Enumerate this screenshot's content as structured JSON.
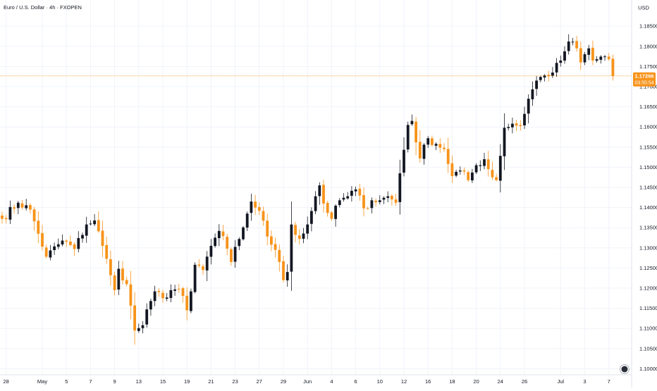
{
  "header": {
    "symbol_title": "Euro / U.S. Dollar · 4h · FXOPEN",
    "currency": "USD"
  },
  "price_tag": {
    "price": "1.17266",
    "countdown": "03:55:54",
    "value": 1.17266
  },
  "colors": {
    "up": "#131722",
    "down": "#f7931a",
    "grid": "#f0f3fa",
    "axis_text": "#131722",
    "price_line": "#f7931a"
  },
  "icons": {
    "bottom_right": "circle-dot-icon"
  },
  "chart_data": {
    "type": "candlestick",
    "title": "Euro / U.S. Dollar · 4h · FXOPEN",
    "ylabel": "USD",
    "ylim": [
      1.0985,
      1.1915
    ],
    "y_ticks": [
      1.185,
      1.18,
      1.175,
      1.17,
      1.165,
      1.16,
      1.155,
      1.15,
      1.145,
      1.14,
      1.135,
      1.13,
      1.125,
      1.12,
      1.115,
      1.11,
      1.105,
      1.1
    ],
    "y_tick_labels": [
      "1.18500",
      "1.18000",
      "1.17500",
      "1.17000",
      "1.16500",
      "1.16000",
      "1.15500",
      "1.15000",
      "1.14500",
      "1.14000",
      "1.13500",
      "1.13000",
      "1.12500",
      "1.12000",
      "1.11500",
      "1.11000",
      "1.10500",
      "1.10000"
    ],
    "x_labels": [
      "28",
      "May",
      "5",
      "7",
      "9",
      "13",
      "15",
      "19",
      "21",
      "23",
      "27",
      "29",
      "Jun",
      "4",
      "6",
      "10",
      "12",
      "16",
      "18",
      "20",
      "24",
      "26",
      "Jul",
      "3",
      "7"
    ],
    "x_label_bar_index": [
      1,
      10,
      16,
      22,
      28,
      34,
      40,
      46,
      52,
      58,
      64,
      70,
      76,
      82,
      88,
      94,
      100,
      106,
      112,
      118,
      124,
      130,
      139,
      145,
      151
    ],
    "bar_count": 153,
    "close_anchors": [
      [
        0,
        1.1372
      ],
      [
        4,
        1.1412
      ],
      [
        7,
        1.1395
      ],
      [
        9,
        1.1335
      ],
      [
        11,
        1.1278
      ],
      [
        15,
        1.1318
      ],
      [
        18,
        1.1297
      ],
      [
        21,
        1.1358
      ],
      [
        23,
        1.1368
      ],
      [
        25,
        1.1305
      ],
      [
        27,
        1.1232
      ],
      [
        28,
        1.1195
      ],
      [
        29,
        1.1248
      ],
      [
        31,
        1.121
      ],
      [
        33,
        1.1095
      ],
      [
        35,
        1.1108
      ],
      [
        37,
        1.1168
      ],
      [
        38,
        1.1192
      ],
      [
        40,
        1.1175
      ],
      [
        42,
        1.1195
      ],
      [
        44,
        1.1198
      ],
      [
        46,
        1.1145
      ],
      [
        47,
        1.1192
      ],
      [
        48,
        1.1258
      ],
      [
        50,
        1.1245
      ],
      [
        52,
        1.1305
      ],
      [
        54,
        1.1342
      ],
      [
        56,
        1.1298
      ],
      [
        57,
        1.1265
      ],
      [
        59,
        1.1322
      ],
      [
        61,
        1.1385
      ],
      [
        62,
        1.1415
      ],
      [
        64,
        1.1392
      ],
      [
        66,
        1.1328
      ],
      [
        68,
        1.1295
      ],
      [
        69,
        1.1265
      ],
      [
        70,
        1.122
      ],
      [
        71,
        1.124
      ],
      [
        72,
        1.1358
      ],
      [
        74,
        1.1322
      ],
      [
        76,
        1.1358
      ],
      [
        78,
        1.1428
      ],
      [
        79,
        1.1455
      ],
      [
        80,
        1.141
      ],
      [
        82,
        1.1372
      ],
      [
        84,
        1.1418
      ],
      [
        86,
        1.1428
      ],
      [
        88,
        1.1445
      ],
      [
        90,
        1.1398
      ],
      [
        92,
        1.1418
      ],
      [
        94,
        1.1418
      ],
      [
        96,
        1.1428
      ],
      [
        98,
        1.1412
      ],
      [
        99,
        1.1485
      ],
      [
        101,
        1.1605
      ],
      [
        102,
        1.1615
      ],
      [
        104,
        1.1522
      ],
      [
        106,
        1.1572
      ],
      [
        108,
        1.1558
      ],
      [
        110,
        1.1545
      ],
      [
        112,
        1.1478
      ],
      [
        114,
        1.1492
      ],
      [
        116,
        1.1468
      ],
      [
        118,
        1.1505
      ],
      [
        120,
        1.152
      ],
      [
        122,
        1.1475
      ],
      [
        123,
        1.1468
      ],
      [
        125,
        1.1598
      ],
      [
        127,
        1.1608
      ],
      [
        129,
        1.1602
      ],
      [
        131,
        1.167
      ],
      [
        133,
        1.1715
      ],
      [
        135,
        1.1728
      ],
      [
        137,
        1.1735
      ],
      [
        139,
        1.1765
      ],
      [
        141,
        1.1812
      ],
      [
        143,
        1.1795
      ],
      [
        144,
        1.176
      ],
      [
        146,
        1.1795
      ],
      [
        147,
        1.1765
      ],
      [
        148,
        1.1768
      ],
      [
        150,
        1.1775
      ],
      [
        151,
        1.1768
      ],
      [
        152,
        1.17266
      ]
    ]
  }
}
